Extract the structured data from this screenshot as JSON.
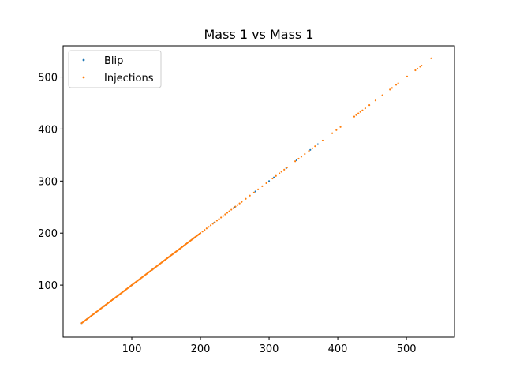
{
  "chart_data": {
    "type": "scatter",
    "title": "Mass 1 vs Mass 1",
    "xlabel": "",
    "ylabel": "",
    "xlim": [
      0,
      570
    ],
    "ylim": [
      0,
      560
    ],
    "x_ticks": [
      100,
      200,
      300,
      400,
      500
    ],
    "y_ticks": [
      100,
      200,
      300,
      400,
      500
    ],
    "grid": false,
    "legend_position": "top-left",
    "series": [
      {
        "name": "Blip",
        "color": "#1f77b4",
        "x": [
          27,
          35,
          45,
          60,
          80,
          100,
          130,
          160,
          190,
          220,
          250,
          280,
          300,
          307,
          325,
          340,
          360,
          371
        ],
        "y": [
          27,
          35,
          45,
          60,
          80,
          100,
          130,
          160,
          190,
          220,
          250,
          280,
          300,
          307,
          325,
          340,
          360,
          371
        ]
      },
      {
        "name": "Injections",
        "color": "#ff7f0e",
        "dense_segments": [
          [
            27,
            200,
            1.2
          ],
          [
            200,
            260,
            3
          ],
          [
            260,
            300,
            6
          ]
        ],
        "x": [
          305,
          310,
          315,
          318,
          322,
          326,
          338,
          343,
          347,
          352,
          358,
          363,
          367,
          378,
          392,
          398,
          404,
          424,
          427,
          430,
          433,
          436,
          440,
          446,
          455,
          465,
          476,
          479,
          485,
          488,
          501,
          513,
          516,
          520,
          522,
          536
        ],
        "y": [
          305,
          310,
          315,
          318,
          322,
          326,
          338,
          343,
          347,
          352,
          358,
          363,
          367,
          378,
          392,
          398,
          404,
          424,
          427,
          430,
          433,
          436,
          440,
          446,
          455,
          465,
          476,
          479,
          485,
          488,
          501,
          513,
          516,
          520,
          522,
          536
        ]
      }
    ]
  }
}
